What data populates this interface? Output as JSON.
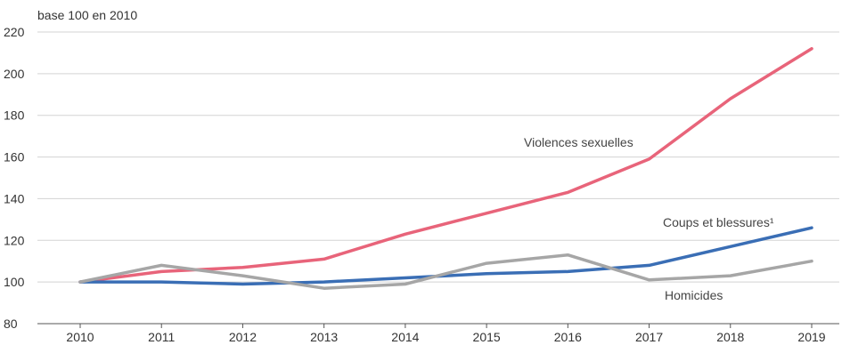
{
  "chart_data": {
    "type": "line",
    "ylabel": "base 100 en 2010",
    "x": [
      "2010",
      "2011",
      "2012",
      "2013",
      "2014",
      "2015",
      "2016",
      "2017",
      "2018",
      "2019"
    ],
    "ylim": [
      80,
      220
    ],
    "yticks": [
      80,
      100,
      120,
      140,
      160,
      180,
      200,
      220
    ],
    "grid": true,
    "series": [
      {
        "name": "Violences sexuelles",
        "color": "#e8647a",
        "values": [
          100,
          105,
          107,
          111,
          123,
          133,
          143,
          159,
          188,
          212
        ]
      },
      {
        "name": "Coups et blessures¹",
        "color": "#3a6eb5",
        "values": [
          100,
          100,
          99,
          100,
          102,
          104,
          105,
          108,
          117,
          126
        ]
      },
      {
        "name": "Homicides",
        "color": "#a6a6a6",
        "values": [
          100,
          108,
          103,
          97,
          99,
          109,
          113,
          101,
          103,
          110
        ]
      }
    ]
  }
}
